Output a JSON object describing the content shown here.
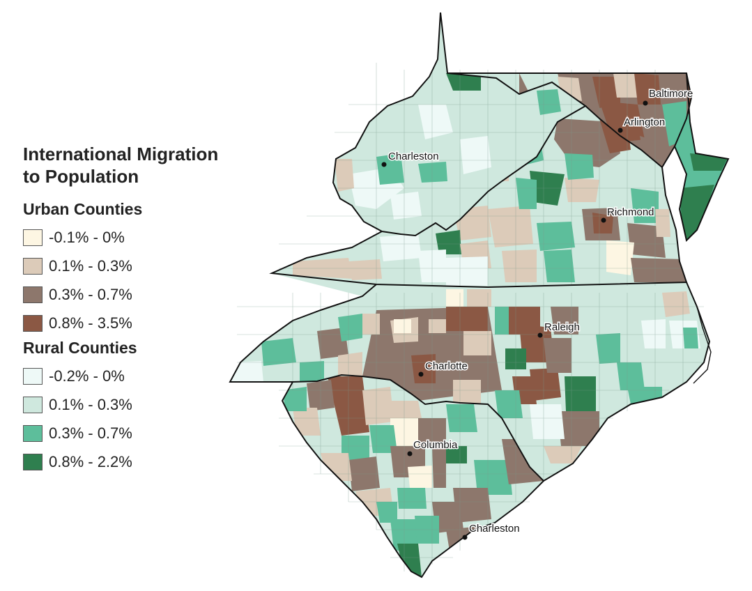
{
  "legend": {
    "title_line1": "International Migration",
    "title_line2": "to Population",
    "urban": {
      "title": "Urban Counties",
      "items": [
        {
          "label": "-0.1% - 0%",
          "color": "#fdf6e3"
        },
        {
          "label": "0.1% - 0.3%",
          "color": "#dccbb9"
        },
        {
          "label": "0.3% - 0.7%",
          "color": "#8d776c"
        },
        {
          "label": "0.8% - 3.5%",
          "color": "#8b5844"
        }
      ]
    },
    "rural": {
      "title": "Rural Counties",
      "items": [
        {
          "label": "-0.2% - 0%",
          "color": "#eef9f7"
        },
        {
          "label": "0.1% - 0.3%",
          "color": "#cfe8de"
        },
        {
          "label": "0.3% - 0.7%",
          "color": "#5dbe9b"
        },
        {
          "label": "0.8% - 2.2%",
          "color": "#2f7f4f"
        }
      ]
    }
  },
  "cities": [
    {
      "id": "baltimore",
      "name": "Baltimore"
    },
    {
      "id": "arlington",
      "name": "Arlington"
    },
    {
      "id": "charleston-wv",
      "name": "Charleston"
    },
    {
      "id": "richmond",
      "name": "Richmond"
    },
    {
      "id": "raleigh",
      "name": "Raleigh"
    },
    {
      "id": "charlotte",
      "name": "Charlotte"
    },
    {
      "id": "columbia",
      "name": "Columbia"
    },
    {
      "id": "charleston-sc",
      "name": "Charleston"
    }
  ]
}
